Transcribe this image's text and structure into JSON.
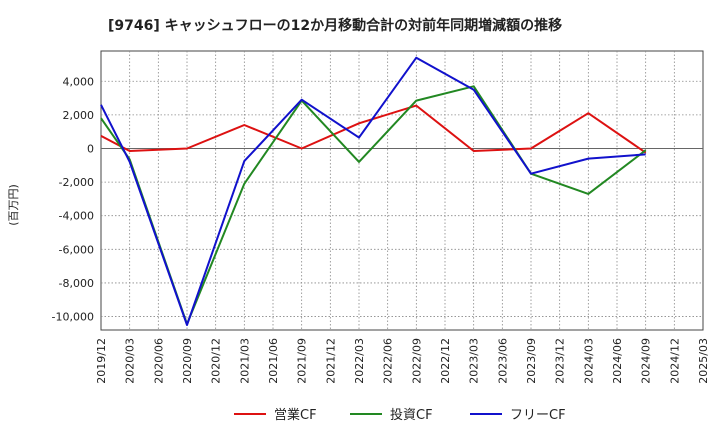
{
  "chart_data": {
    "type": "line",
    "title": "[9746]  キャッシュフローの12か月移動合計の対前年同期増減額の推移",
    "ylabel": "(百万円)",
    "xlabel": "",
    "ylim": [
      -10800,
      5800
    ],
    "yticks": [
      4000,
      2000,
      0,
      -2000,
      -4000,
      -6000,
      -8000,
      -10000
    ],
    "ytick_labels": [
      "4,000",
      "2,000",
      "0",
      "-2,000",
      "-4,000",
      "-6,000",
      "-8,000",
      "-10,000"
    ],
    "x_categories": [
      "2019/12",
      "2020/03",
      "2020/06",
      "2020/09",
      "2020/12",
      "2021/03",
      "2021/06",
      "2021/09",
      "2021/12",
      "2022/03",
      "2022/06",
      "2022/09",
      "2022/12",
      "2023/03",
      "2023/06",
      "2023/09",
      "2023/12",
      "2024/03",
      "2024/06",
      "2024/09",
      "2024/12",
      "2025/03"
    ],
    "grid": true,
    "legend_position": "bottom",
    "series": [
      {
        "name": "営業CF",
        "color": "#dd1111",
        "points": [
          [
            "2019/12",
            750
          ],
          [
            "2020/03",
            -150
          ],
          [
            "2020/09",
            0
          ],
          [
            "2021/03",
            1400
          ],
          [
            "2021/09",
            0
          ],
          [
            "2022/03",
            1500
          ],
          [
            "2022/09",
            2550
          ],
          [
            "2023/03",
            -150
          ],
          [
            "2023/09",
            0
          ],
          [
            "2024/03",
            2100
          ],
          [
            "2024/09",
            -250
          ]
        ]
      },
      {
        "name": "投資CF",
        "color": "#228822",
        "points": [
          [
            "2019/12",
            1800
          ],
          [
            "2020/03",
            -650
          ],
          [
            "2020/09",
            -10450
          ],
          [
            "2021/03",
            -2100
          ],
          [
            "2021/09",
            2850
          ],
          [
            "2022/03",
            -800
          ],
          [
            "2022/09",
            2850
          ],
          [
            "2023/03",
            3700
          ],
          [
            "2023/09",
            -1500
          ],
          [
            "2024/03",
            -2700
          ],
          [
            "2024/09",
            -100
          ]
        ]
      },
      {
        "name": "フリーCF",
        "color": "#1111cc",
        "points": [
          [
            "2019/12",
            2600
          ],
          [
            "2020/03",
            -800
          ],
          [
            "2020/09",
            -10500
          ],
          [
            "2021/03",
            -750
          ],
          [
            "2021/09",
            2900
          ],
          [
            "2022/03",
            650
          ],
          [
            "2022/09",
            5400
          ],
          [
            "2023/03",
            3500
          ],
          [
            "2023/09",
            -1500
          ],
          [
            "2024/03",
            -600
          ],
          [
            "2024/09",
            -350
          ]
        ]
      }
    ]
  }
}
